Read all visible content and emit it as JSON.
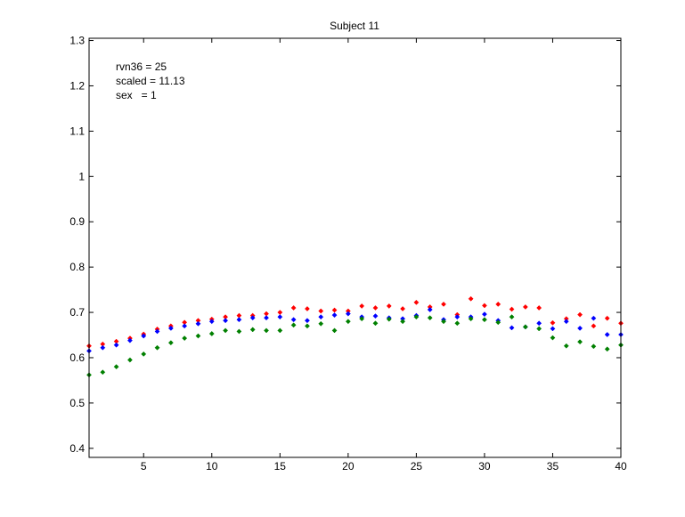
{
  "chart_data": {
    "type": "scatter",
    "title": "Subject 11",
    "xlabel": "",
    "ylabel": "",
    "xlim": [
      1,
      40
    ],
    "ylim": [
      0.38,
      1.305
    ],
    "x_ticks": [
      5,
      10,
      15,
      20,
      25,
      30,
      35,
      40
    ],
    "y_ticks": [
      0.4,
      0.5,
      0.6,
      0.7,
      0.8,
      0.9,
      1,
      1.1,
      1.2,
      1.3
    ],
    "y_tick_labels": [
      "0.4",
      "0.5",
      "0.6",
      "0.7",
      "0.8",
      "0.9",
      "1",
      "1.1",
      "1.2",
      "1.3"
    ],
    "grid": false,
    "legend": "none",
    "annotations": [
      "rvn36 = 25",
      "scaled = 11.13",
      "sex   = 1"
    ],
    "x": [
      1,
      2,
      3,
      4,
      5,
      6,
      7,
      8,
      9,
      10,
      11,
      12,
      13,
      14,
      15,
      16,
      17,
      18,
      19,
      20,
      21,
      22,
      23,
      24,
      25,
      26,
      27,
      28,
      29,
      30,
      31,
      32,
      33,
      34,
      35,
      36,
      37,
      38,
      39,
      40
    ],
    "series": [
      {
        "color": "#ff0000",
        "values": [
          0.626,
          0.63,
          0.636,
          0.643,
          0.652,
          0.663,
          0.67,
          0.678,
          0.682,
          0.685,
          0.69,
          0.693,
          0.693,
          0.697,
          0.7,
          0.71,
          0.708,
          0.703,
          0.705,
          0.703,
          0.714,
          0.71,
          0.714,
          0.708,
          0.722,
          0.712,
          0.718,
          0.695,
          0.73,
          0.715,
          0.718,
          0.707,
          0.712,
          0.71,
          0.677,
          0.686,
          0.695,
          0.67,
          0.687,
          0.676
        ]
      },
      {
        "color": "#0000ff",
        "values": [
          0.615,
          0.622,
          0.628,
          0.638,
          0.648,
          0.658,
          0.665,
          0.67,
          0.675,
          0.68,
          0.682,
          0.684,
          0.688,
          0.688,
          0.69,
          0.684,
          0.682,
          0.69,
          0.694,
          0.697,
          0.69,
          0.692,
          0.688,
          0.686,
          0.693,
          0.706,
          0.684,
          0.69,
          0.69,
          0.696,
          0.682,
          0.666,
          0.668,
          0.676,
          0.664,
          0.68,
          0.665,
          0.687,
          0.651,
          0.651
        ]
      },
      {
        "color": "#008000",
        "values": [
          0.562,
          0.568,
          0.58,
          0.595,
          0.608,
          0.622,
          0.633,
          0.643,
          0.648,
          0.653,
          0.66,
          0.658,
          0.662,
          0.66,
          0.66,
          0.672,
          0.67,
          0.675,
          0.66,
          0.68,
          0.686,
          0.676,
          0.685,
          0.68,
          0.69,
          0.688,
          0.68,
          0.676,
          0.686,
          0.684,
          0.678,
          0.69,
          0.668,
          0.664,
          0.644,
          0.626,
          0.635,
          0.625,
          0.619,
          0.628
        ]
      }
    ]
  }
}
